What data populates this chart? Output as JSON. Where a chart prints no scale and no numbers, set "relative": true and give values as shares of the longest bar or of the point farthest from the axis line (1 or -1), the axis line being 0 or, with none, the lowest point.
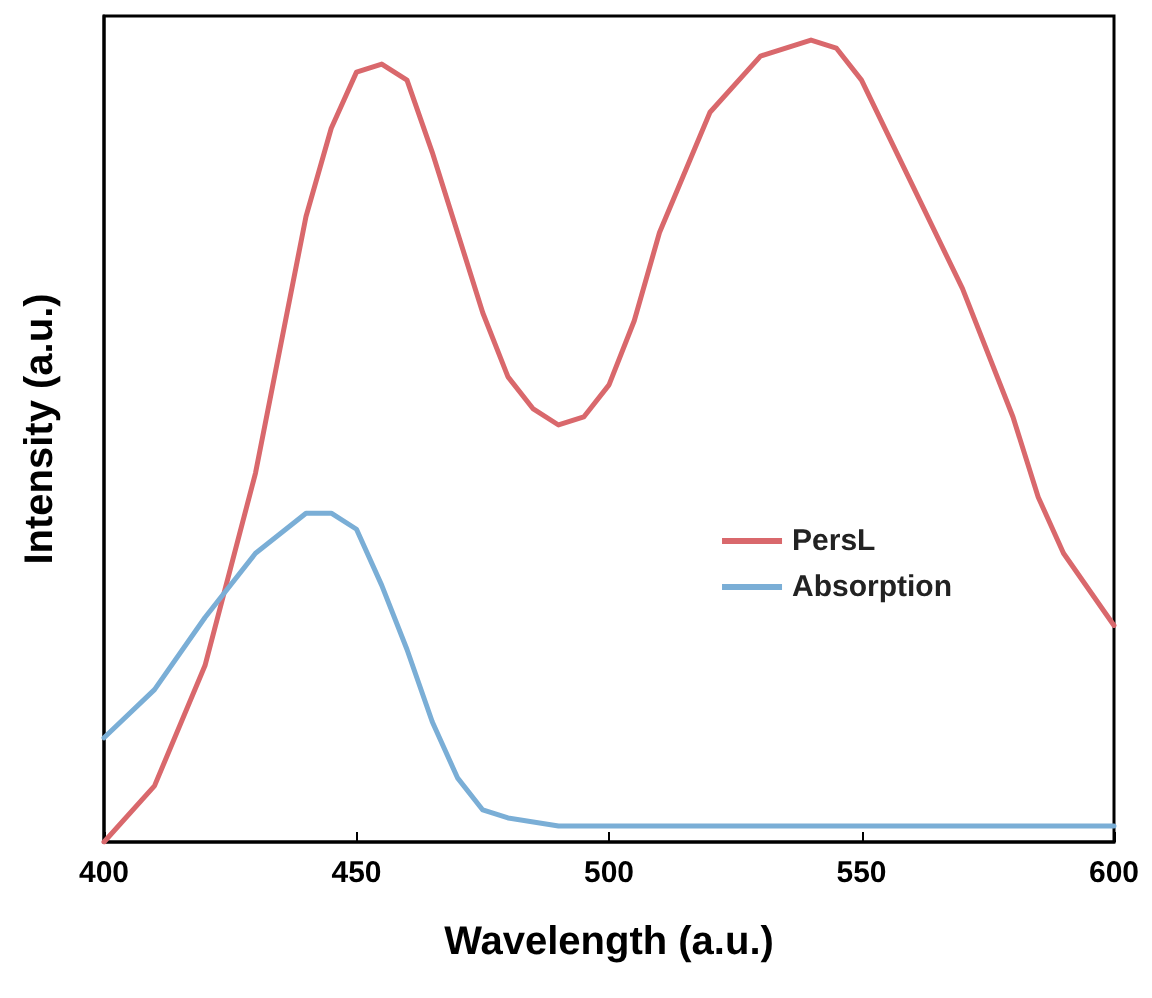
{
  "chart_data": {
    "type": "line",
    "xlabel": "Wavelength (a.u.)",
    "ylabel": "Intensity (a.u.)",
    "relative": true,
    "xlim": [
      400,
      600
    ],
    "xticks": [
      400,
      450,
      500,
      550,
      600
    ],
    "legend": "right",
    "grid": false,
    "marker": "none",
    "line_style": "solid",
    "series": [
      {
        "name": "PersL",
        "color": "#d9686c",
        "x": [
          400,
          410,
          420,
          430,
          440,
          445,
          450,
          455,
          460,
          465,
          470,
          475,
          480,
          485,
          490,
          495,
          500,
          505,
          510,
          520,
          530,
          540,
          545,
          550,
          560,
          570,
          580,
          585,
          590,
          600
        ],
        "values": [
          0,
          0.07,
          0.22,
          0.46,
          0.78,
          0.89,
          0.96,
          0.97,
          0.95,
          0.86,
          0.76,
          0.66,
          0.58,
          0.54,
          0.52,
          0.53,
          0.57,
          0.65,
          0.76,
          0.91,
          0.98,
          1.0,
          0.99,
          0.95,
          0.82,
          0.69,
          0.53,
          0.43,
          0.36,
          0.27
        ]
      },
      {
        "name": "Absorption",
        "color": "#7aaed6",
        "x": [
          400,
          410,
          420,
          430,
          440,
          445,
          450,
          455,
          460,
          465,
          470,
          475,
          480,
          490,
          500,
          550,
          600
        ],
        "values": [
          0.13,
          0.19,
          0.28,
          0.36,
          0.41,
          0.41,
          0.39,
          0.32,
          0.24,
          0.15,
          0.08,
          0.04,
          0.03,
          0.02,
          0.02,
          0.02,
          0.02
        ]
      }
    ]
  }
}
